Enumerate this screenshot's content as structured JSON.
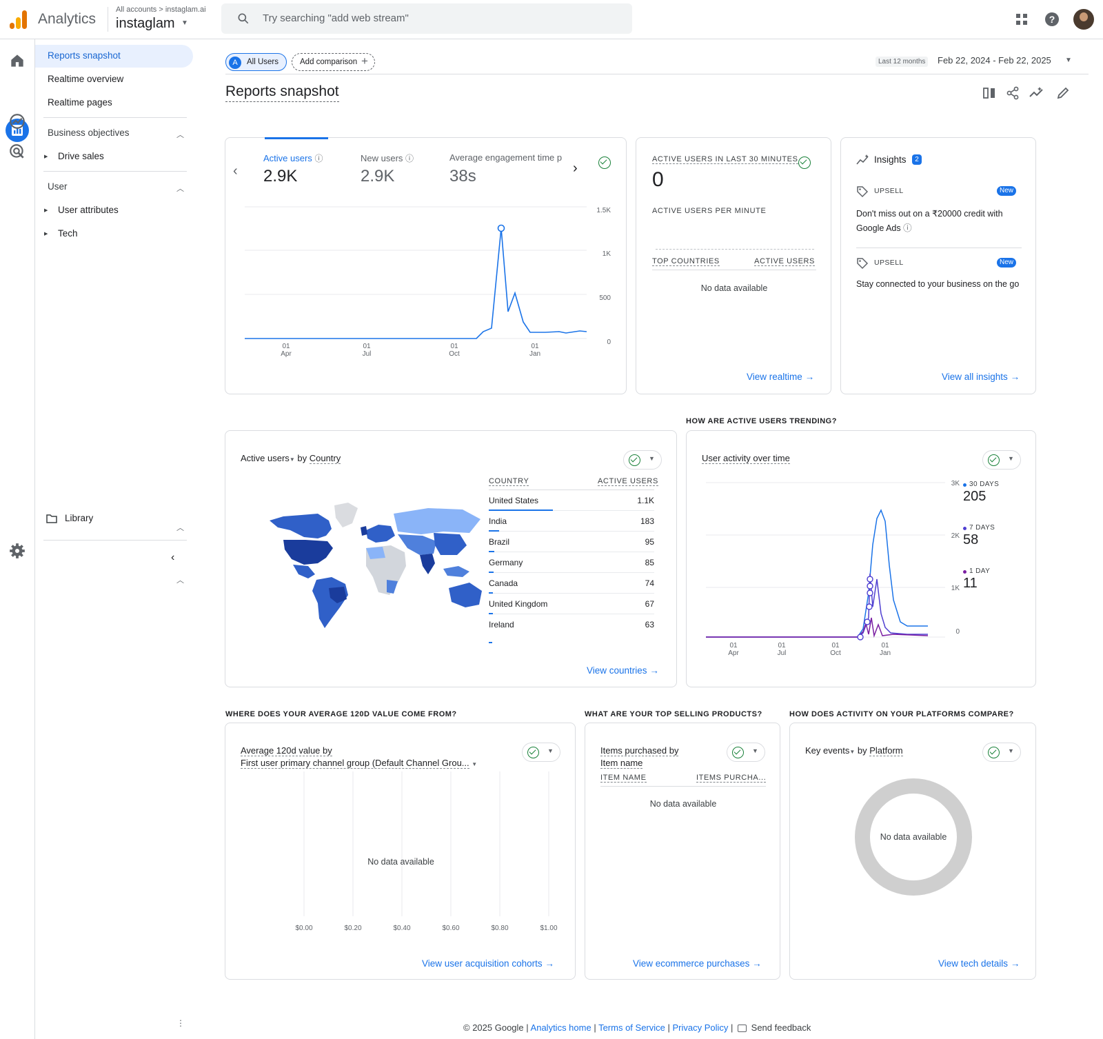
{
  "header": {
    "app_name": "Analytics",
    "account_path": "All accounts > instaglam.ai",
    "property": "instaglam",
    "search_placeholder": "Try searching \"add web stream\""
  },
  "nav": {
    "reports_snapshot": "Reports snapshot",
    "realtime_overview": "Realtime overview",
    "realtime_pages": "Realtime pages",
    "business_objectives": "Business objectives",
    "drive_sales": "Drive sales",
    "user": "User",
    "user_attributes": "User attributes",
    "tech": "Tech",
    "library": "Library"
  },
  "toolbar": {
    "chip_all": "All Users",
    "chip_all_letter": "A",
    "add_comparison": "Add comparison",
    "date_label": "Last 12 months",
    "date_range": "Feb 22, 2024 - Feb 22, 2025",
    "page_title": "Reports snapshot"
  },
  "overview": {
    "metrics": [
      {
        "label": "Active users",
        "value": "2.9K"
      },
      {
        "label": "New users",
        "value": "2.9K"
      },
      {
        "label": "Average engagement time p",
        "value": "38s"
      }
    ],
    "y_ticks": [
      "1.5K",
      "1K",
      "500",
      "0"
    ],
    "x_ticks": [
      {
        "d": "01",
        "m": "Apr"
      },
      {
        "d": "01",
        "m": "Jul"
      },
      {
        "d": "01",
        "m": "Oct"
      },
      {
        "d": "01",
        "m": "Jan"
      }
    ]
  },
  "realtime": {
    "title": "ACTIVE USERS IN LAST 30 MINUTES",
    "value": "0",
    "per_minute": "ACTIVE USERS PER MINUTE",
    "col_country": "TOP COUNTRIES",
    "col_users": "ACTIVE USERS",
    "no_data": "No data available",
    "link": "View realtime"
  },
  "insights": {
    "title": "Insights",
    "count": "2",
    "items": [
      {
        "tag": "UPSELL",
        "badge": "New",
        "text": "Don't miss out on a ₹20000 credit with Google Ads"
      },
      {
        "tag": "UPSELL",
        "badge": "New",
        "text": "Stay connected to your business on the go"
      }
    ],
    "link": "View all insights"
  },
  "country_card": {
    "title_metric": "Active users",
    "title_by": "by",
    "title_dim": "Country",
    "col_country": "COUNTRY",
    "col_users": "ACTIVE USERS",
    "rows": [
      {
        "name": "United States",
        "value": "1.1K"
      },
      {
        "name": "India",
        "value": "183"
      },
      {
        "name": "Brazil",
        "value": "95"
      },
      {
        "name": "Germany",
        "value": "85"
      },
      {
        "name": "Canada",
        "value": "74"
      },
      {
        "name": "United Kingdom",
        "value": "67"
      },
      {
        "name": "Ireland",
        "value": "63"
      }
    ],
    "link": "View countries"
  },
  "trend": {
    "section": "HOW ARE ACTIVE USERS TRENDING?",
    "title": "User activity over time",
    "y_ticks": [
      "3K",
      "2K",
      "1K",
      "0"
    ],
    "x_ticks": [
      {
        "d": "01",
        "m": "Apr"
      },
      {
        "d": "01",
        "m": "Jul"
      },
      {
        "d": "01",
        "m": "Oct"
      },
      {
        "d": "01",
        "m": "Jan"
      }
    ],
    "legend": [
      {
        "label": "30 DAYS",
        "value": "205",
        "color": "#1a73e8"
      },
      {
        "label": "7 DAYS",
        "value": "58",
        "color": "#4f3fd1"
      },
      {
        "label": "1 DAY",
        "value": "11",
        "color": "#7b1fa2"
      }
    ]
  },
  "value_card": {
    "section": "WHERE DOES YOUR AVERAGE 120D VALUE COME FROM?",
    "title1": "Average 120d value by",
    "title2": "First user primary channel group (Default Channel Grou...",
    "no_data": "No data available",
    "x_ticks": [
      "$0.00",
      "$0.20",
      "$0.40",
      "$0.60",
      "$0.80",
      "$1.00"
    ],
    "link": "View user acquisition cohorts"
  },
  "products_card": {
    "section": "WHAT ARE YOUR TOP SELLING PRODUCTS?",
    "title1": "Items purchased by",
    "title2": "Item name",
    "col1": "ITEM NAME",
    "col2": "ITEMS PURCHA...",
    "no_data": "No data available",
    "link": "View ecommerce purchases"
  },
  "platform_card": {
    "section": "HOW DOES ACTIVITY ON YOUR PLATFORMS COMPARE?",
    "title_metric": "Key events",
    "title_by": "by",
    "title_dim": "Platform",
    "no_data": "No data available",
    "link": "View tech details"
  },
  "footer": {
    "copyright": "© 2025 Google |",
    "home": "Analytics home",
    "tos": "Terms of Service",
    "privacy": "Privacy Policy",
    "feedback": "Send feedback"
  }
}
